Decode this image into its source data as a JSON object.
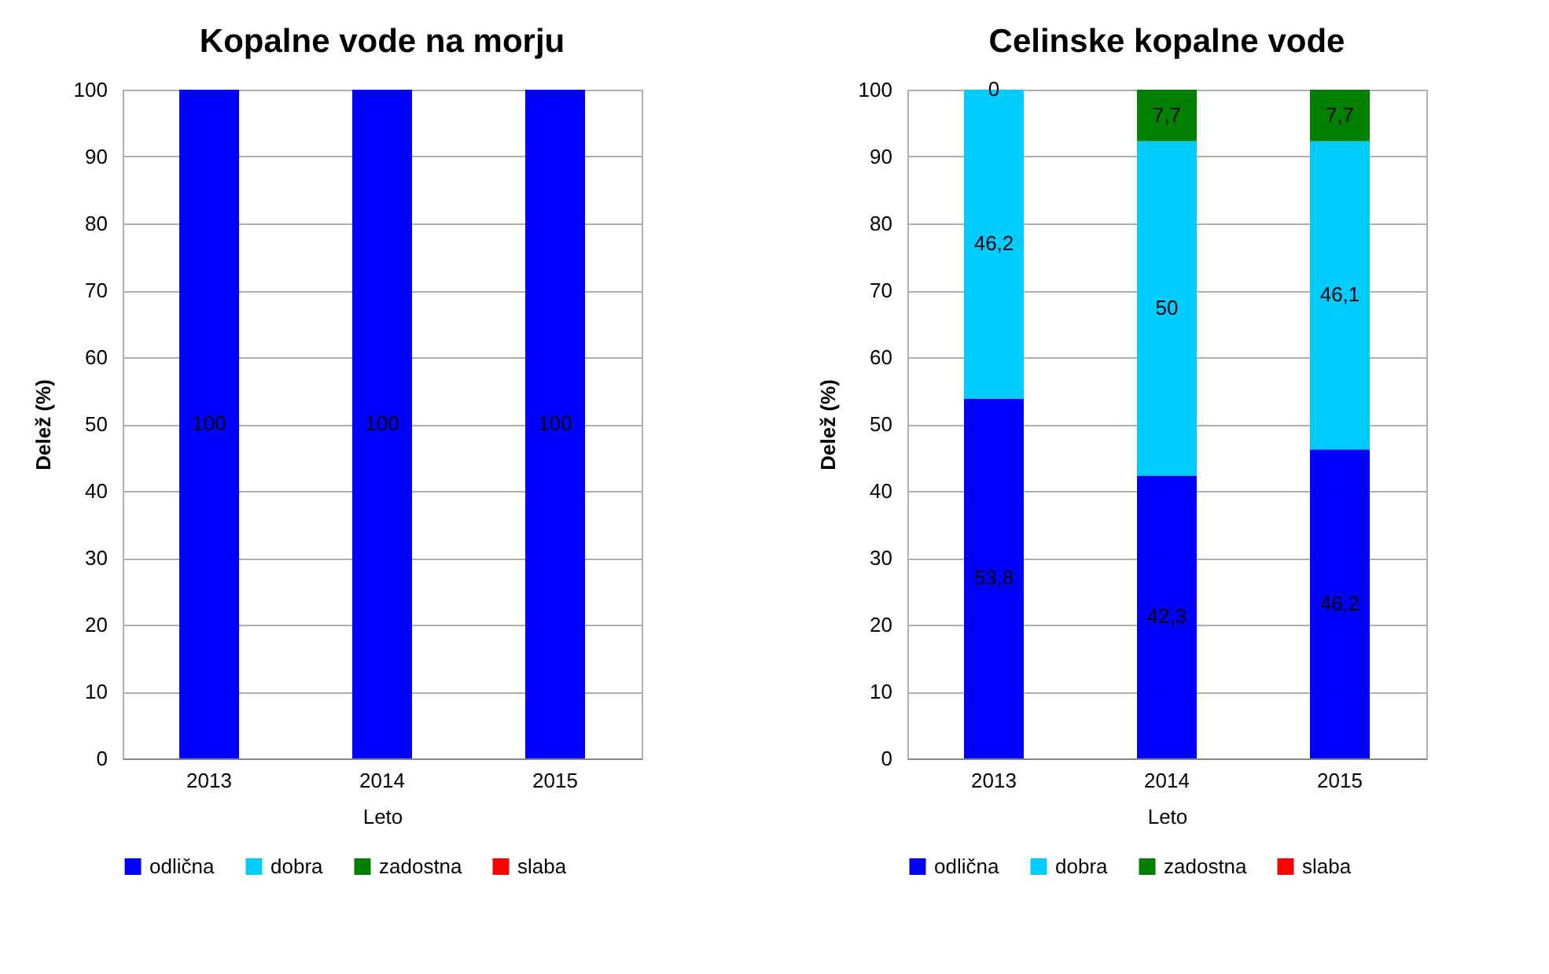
{
  "chart_data": [
    {
      "type": "bar",
      "title": "Kopalne vode na morju",
      "xlabel": "Leto",
      "ylabel": "Delež (%)",
      "categories": [
        "2013",
        "2014",
        "2015"
      ],
      "stacked": true,
      "ylim": [
        0,
        100
      ],
      "yticks": [
        0,
        10,
        20,
        30,
        40,
        50,
        60,
        70,
        80,
        90,
        100
      ],
      "grid": "y",
      "legend": "bottom",
      "series": [
        {
          "name": "odlična",
          "color": "#0000ff",
          "values": [
            100,
            100,
            100
          ],
          "value_labels": [
            "100",
            "100",
            "100"
          ]
        },
        {
          "name": "dobra",
          "color": "#00ccff",
          "values": [
            0,
            0,
            0
          ]
        },
        {
          "name": "zadostna",
          "color": "#008000",
          "values": [
            0,
            0,
            0
          ]
        },
        {
          "name": "slaba",
          "color": "#ff0000",
          "values": [
            0,
            0,
            0
          ]
        }
      ]
    },
    {
      "type": "bar",
      "title": "Celinske kopalne vode",
      "xlabel": "Leto",
      "ylabel": "Delež (%)",
      "categories": [
        "2013",
        "2014",
        "2015"
      ],
      "stacked": true,
      "ylim": [
        0,
        100
      ],
      "yticks": [
        0,
        10,
        20,
        30,
        40,
        50,
        60,
        70,
        80,
        90,
        100
      ],
      "grid": "y",
      "legend": "bottom",
      "series": [
        {
          "name": "odlična",
          "color": "#0000ff",
          "values": [
            53.8,
            42.3,
            46.2
          ],
          "value_labels": [
            "53,8",
            "42,3",
            "46,2"
          ]
        },
        {
          "name": "dobra",
          "color": "#00ccff",
          "values": [
            46.2,
            50,
            46.1
          ],
          "value_labels": [
            "46,2",
            "50",
            "46,1"
          ]
        },
        {
          "name": "zadostna",
          "color": "#008000",
          "values": [
            0,
            7.7,
            7.7
          ],
          "value_labels": [
            "0",
            "7,7",
            "7,7"
          ]
        },
        {
          "name": "slaba",
          "color": "#ff0000",
          "values": [
            0,
            0,
            0
          ]
        }
      ]
    }
  ]
}
